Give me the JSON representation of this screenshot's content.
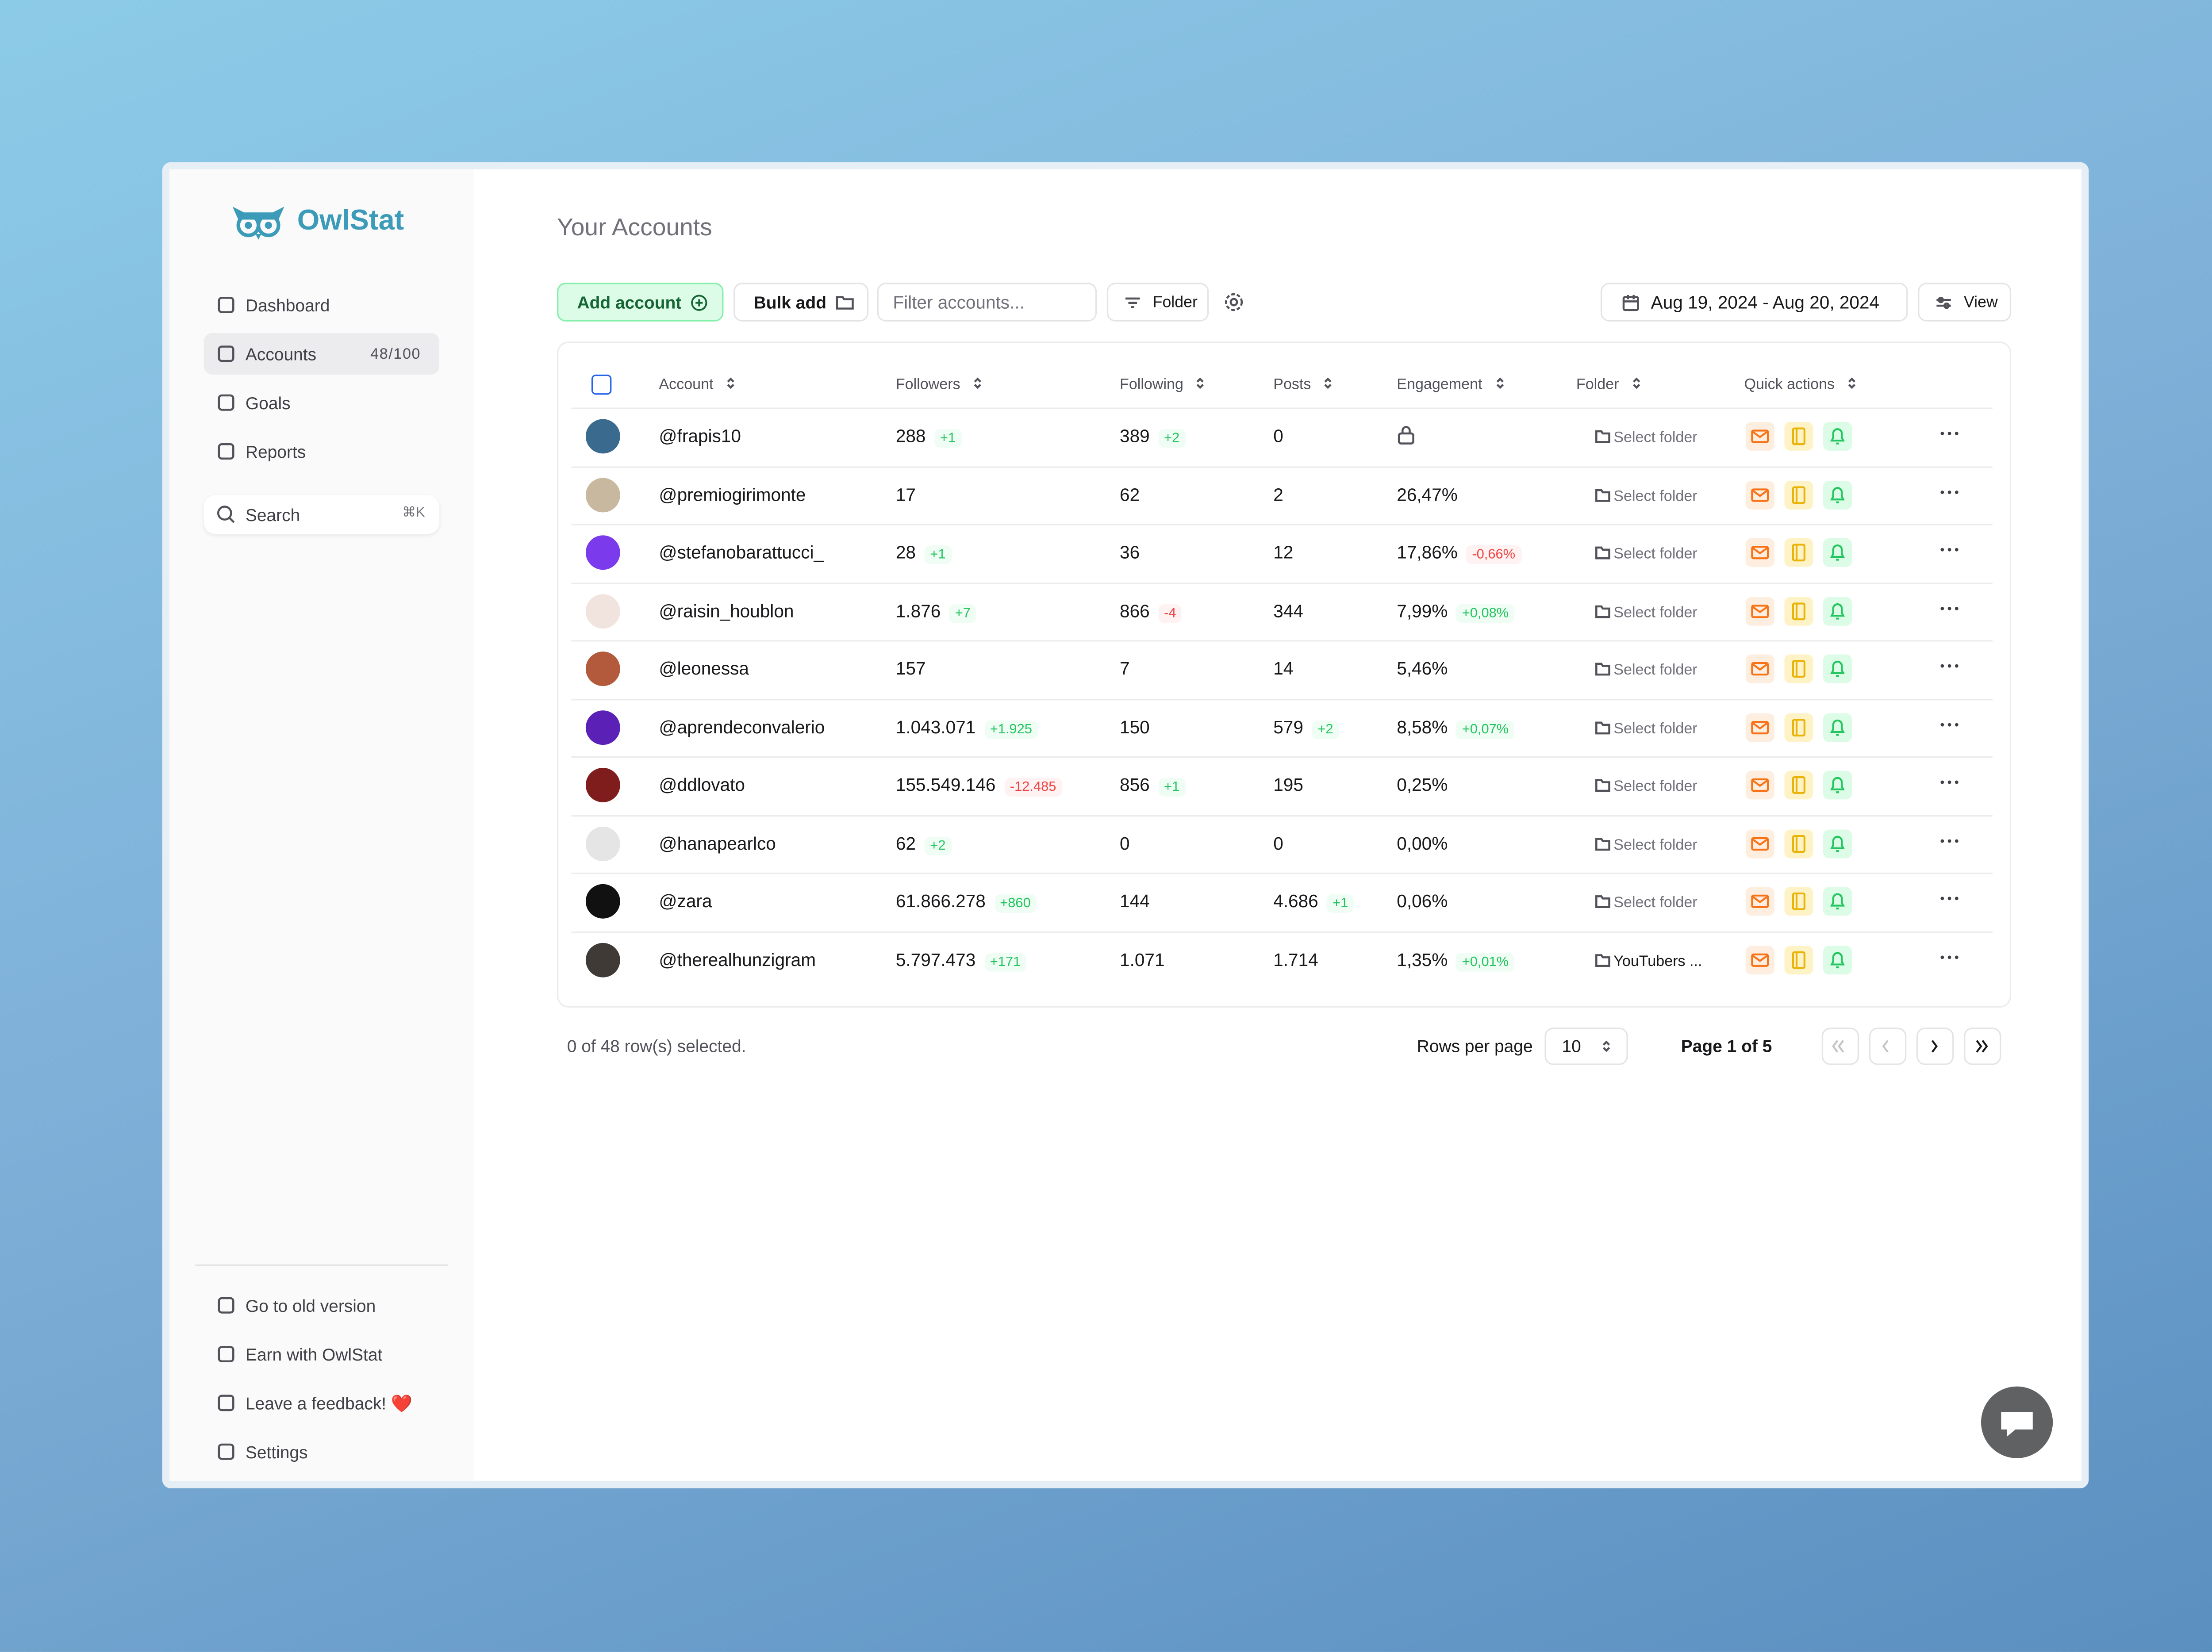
{
  "brand": "OwlStat",
  "nav": [
    {
      "label": "Dashboard"
    },
    {
      "label": "Accounts",
      "badge": "48/100"
    },
    {
      "label": "Goals"
    },
    {
      "label": "Reports"
    }
  ],
  "search": {
    "label": "Search",
    "shortcut": "⌘K"
  },
  "footer_nav": [
    "Go to old version",
    "Earn with OwlStat",
    "Leave a feedback! ❤️",
    "Settings"
  ],
  "page_title": "Your Accounts",
  "toolbar": {
    "add": "Add account",
    "bulk": "Bulk add",
    "filter_placeholder": "Filter accounts...",
    "folder": "Folder",
    "date_range": "Aug 19, 2024 - Aug 20, 2024",
    "view": "View"
  },
  "table": {
    "headers": [
      "Account",
      "Followers",
      "Following",
      "Posts",
      "Engagement",
      "Folder",
      "Quick actions"
    ],
    "rows": [
      {
        "account": "@frapis10",
        "followers": "288",
        "followers_delta": "+1",
        "following": "389",
        "following_delta": "+2",
        "posts": "0",
        "posts_delta": null,
        "engagement": null,
        "engagement_delta": null,
        "folder": "Select folder"
      },
      {
        "account": "@premiogirimonte",
        "followers": "17",
        "followers_delta": null,
        "following": "62",
        "following_delta": null,
        "posts": "2",
        "posts_delta": null,
        "engagement": "26,47%",
        "engagement_delta": null,
        "folder": "Select folder"
      },
      {
        "account": "@stefanobarattucci_",
        "followers": "28",
        "followers_delta": "+1",
        "following": "36",
        "following_delta": null,
        "posts": "12",
        "posts_delta": null,
        "engagement": "17,86%",
        "engagement_delta": "-0,66%",
        "folder": "Select folder"
      },
      {
        "account": "@raisin_houblon",
        "followers": "1.876",
        "followers_delta": "+7",
        "following": "866",
        "following_delta": "-4",
        "posts": "344",
        "posts_delta": null,
        "engagement": "7,99%",
        "engagement_delta": "+0,08%",
        "folder": "Select folder"
      },
      {
        "account": "@leonessa",
        "followers": "157",
        "followers_delta": null,
        "following": "7",
        "following_delta": null,
        "posts": "14",
        "posts_delta": null,
        "engagement": "5,46%",
        "engagement_delta": null,
        "folder": "Select folder"
      },
      {
        "account": "@aprendeconvalerio",
        "followers": "1.043.071",
        "followers_delta": "+1.925",
        "following": "150",
        "following_delta": null,
        "posts": "579",
        "posts_delta": "+2",
        "engagement": "8,58%",
        "engagement_delta": "+0,07%",
        "folder": "Select folder"
      },
      {
        "account": "@ddlovato",
        "followers": "155.549.146",
        "followers_delta": "-12.485",
        "following": "856",
        "following_delta": "+1",
        "posts": "195",
        "posts_delta": null,
        "engagement": "0,25%",
        "engagement_delta": null,
        "folder": "Select folder"
      },
      {
        "account": "@hanapearlco",
        "followers": "62",
        "followers_delta": "+2",
        "following": "0",
        "following_delta": null,
        "posts": "0",
        "posts_delta": null,
        "engagement": "0,00%",
        "engagement_delta": null,
        "folder": "Select folder"
      },
      {
        "account": "@zara",
        "followers": "61.866.278",
        "followers_delta": "+860",
        "following": "144",
        "following_delta": null,
        "posts": "4.686",
        "posts_delta": "+1",
        "engagement": "0,06%",
        "engagement_delta": null,
        "folder": "Select folder"
      },
      {
        "account": "@therealhunzigram",
        "followers": "5.797.473",
        "followers_delta": "+171",
        "following": "1.071",
        "following_delta": null,
        "posts": "1.714",
        "posts_delta": null,
        "engagement": "1,35%",
        "engagement_delta": "+0,01%",
        "folder": "YouTubers ..."
      }
    ]
  },
  "pagination": {
    "selected": "0 of 48 row(s) selected.",
    "rows_per_page_label": "Rows per page",
    "rows_per_page": "10",
    "page": "Page 1 of 5"
  }
}
